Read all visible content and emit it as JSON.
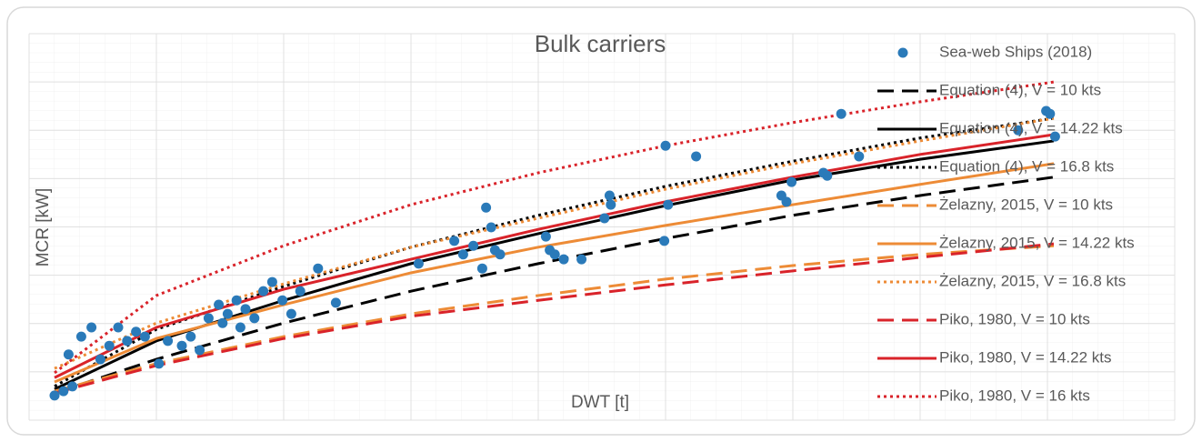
{
  "chart_data": {
    "type": "scatter",
    "title": "Bulk carriers",
    "x_label": "DWT [t]",
    "y_label": "MCR [kW]",
    "xlim": [
      0,
      9
    ],
    "ylim": [
      0,
      8
    ],
    "xticks": [
      0,
      1,
      2,
      3,
      4,
      5,
      6,
      7,
      8,
      9
    ],
    "yticks": [
      0,
      1,
      2,
      3,
      4,
      5,
      6,
      7,
      8
    ],
    "tick_labels": false,
    "grid": true,
    "legend": "right",
    "series": [
      {
        "name": "Sea-web Ships (2018)",
        "type": "scatter",
        "color": "#2a7ab9",
        "x": [
          0.2,
          0.27,
          0.34,
          0.31,
          0.41,
          0.49,
          0.56,
          0.63,
          0.7,
          0.77,
          0.84,
          0.91,
          1.02,
          1.09,
          1.2,
          1.27,
          1.34,
          1.41,
          1.49,
          1.52,
          1.56,
          1.63,
          1.66,
          1.7,
          1.77,
          1.84,
          1.91,
          1.99,
          2.06,
          2.13,
          2.27,
          2.41,
          3.06,
          3.34,
          3.41,
          3.49,
          3.56,
          3.59,
          3.63,
          3.66,
          3.7,
          4.06,
          4.09,
          4.13,
          4.2,
          4.34,
          4.52,
          4.56,
          4.57,
          4.99,
          5.0,
          5.02,
          5.24,
          5.91,
          5.95,
          5.99,
          6.24,
          6.27,
          6.38,
          6.52,
          7.77,
          7.99,
          8.02,
          8.06
        ],
        "values": [
          0.51,
          0.6,
          0.7,
          1.36,
          1.73,
          1.92,
          1.26,
          1.54,
          1.92,
          1.64,
          1.83,
          1.73,
          1.17,
          1.64,
          1.54,
          1.73,
          1.45,
          2.11,
          2.39,
          2.01,
          2.2,
          2.48,
          1.92,
          2.3,
          2.11,
          2.67,
          2.86,
          2.48,
          2.2,
          2.67,
          3.14,
          2.43,
          3.24,
          3.71,
          3.43,
          3.61,
          3.14,
          4.4,
          3.99,
          3.52,
          3.43,
          3.8,
          3.52,
          3.43,
          3.33,
          3.33,
          4.18,
          4.65,
          4.46,
          3.71,
          5.68,
          4.46,
          5.46,
          4.65,
          4.52,
          4.93,
          5.12,
          5.06,
          6.34,
          5.46,
          6.0,
          6.4,
          6.34,
          5.87
        ]
      },
      {
        "name": "Equation (4), V = 10 kts",
        "type": "line",
        "dash": "dashed",
        "color": "#000000",
        "x": [
          0.2,
          1,
          2,
          3,
          4,
          5,
          6,
          7,
          8.05
        ],
        "values": [
          0.56,
          1.26,
          2.01,
          2.67,
          3.24,
          3.76,
          4.24,
          4.65,
          5.03
        ]
      },
      {
        "name": "Equation (4), V = 14.22 kts",
        "type": "line",
        "dash": "solid",
        "color": "#000000",
        "x": [
          0.2,
          1,
          2,
          3,
          4,
          5,
          6,
          7,
          8.05
        ],
        "values": [
          0.64,
          1.64,
          2.48,
          3.24,
          3.86,
          4.44,
          4.97,
          5.4,
          5.78
        ]
      },
      {
        "name": "Equation (4), V = 16.8 kts",
        "type": "line",
        "dash": "dotted",
        "color": "#000000",
        "x": [
          0.2,
          1,
          2,
          3,
          4,
          5,
          6,
          7,
          8.05
        ],
        "values": [
          0.7,
          1.88,
          2.77,
          3.58,
          4.24,
          4.84,
          5.36,
          5.84,
          6.25
        ]
      },
      {
        "name": "Żelazny, 2015, V = 10 kts",
        "type": "line",
        "dash": "dashed",
        "color": "#ed8b36",
        "x": [
          0.2,
          1,
          2,
          3,
          4,
          5,
          6,
          7,
          8.05
        ],
        "values": [
          0.6,
          1.17,
          1.73,
          2.2,
          2.58,
          2.92,
          3.2,
          3.43,
          3.61
        ]
      },
      {
        "name": "Żelazny, 2015, V = 14.22 kts",
        "type": "line",
        "dash": "solid",
        "color": "#ed8b36",
        "x": [
          0.2,
          1,
          2,
          3,
          4,
          5,
          6,
          7,
          8.05
        ],
        "values": [
          0.79,
          1.69,
          2.39,
          3.05,
          3.58,
          4.03,
          4.46,
          4.88,
          5.31
        ]
      },
      {
        "name": "Żelazny, 2015, V = 16.8 kts",
        "type": "line",
        "dash": "dotted",
        "color": "#ed8b36",
        "x": [
          0.2,
          1,
          2,
          3,
          4,
          5,
          6,
          7,
          8.05
        ],
        "values": [
          1.07,
          2.01,
          2.82,
          3.58,
          4.18,
          4.78,
          5.31,
          5.78,
          6.25
        ]
      },
      {
        "name": "Piko, 1980, V = 10 kts",
        "type": "line",
        "dash": "dashed",
        "color": "#d9232a",
        "x": [
          0.2,
          1,
          2,
          3,
          4,
          5,
          6,
          7,
          8.05
        ],
        "values": [
          0.56,
          1.13,
          1.69,
          2.15,
          2.48,
          2.8,
          3.09,
          3.37,
          3.65
        ]
      },
      {
        "name": "Piko, 1980, V = 14.22 kts",
        "type": "line",
        "dash": "solid",
        "color": "#d9232a",
        "x": [
          0.2,
          1,
          2,
          3,
          4,
          5,
          6,
          7,
          8.05
        ],
        "values": [
          0.88,
          1.92,
          2.71,
          3.33,
          3.95,
          4.52,
          5.03,
          5.5,
          5.91
        ]
      },
      {
        "name": "Piko, 1980, V = 16 kts",
        "type": "line",
        "dash": "dotted",
        "color": "#d9232a",
        "x": [
          0.2,
          1,
          2,
          3,
          4,
          5,
          6,
          7,
          8.05
        ],
        "values": [
          0.98,
          2.58,
          3.61,
          4.46,
          5.12,
          5.68,
          6.16,
          6.59,
          7.0
        ]
      }
    ]
  }
}
